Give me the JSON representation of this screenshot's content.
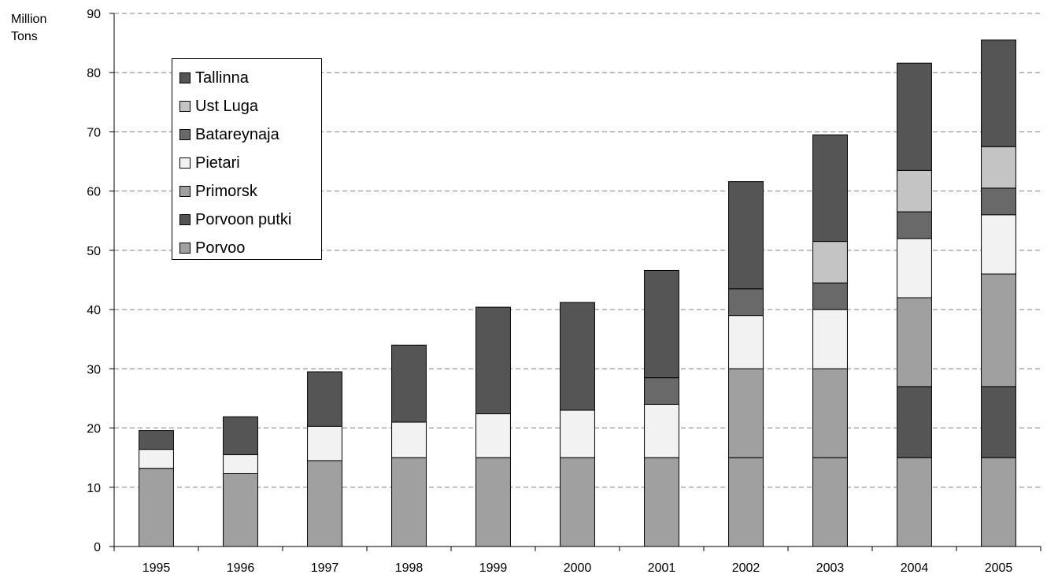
{
  "chart_data": {
    "type": "bar",
    "stacked": true,
    "title": "",
    "ylabel_lines": [
      "Million",
      "Tons"
    ],
    "ylim": [
      0,
      90
    ],
    "ytick_step": 10,
    "grid": "horizontal dashed",
    "legend_position": "top-left",
    "categories": [
      "1995",
      "1996",
      "1997",
      "1998",
      "1999",
      "2000",
      "2001",
      "2002",
      "2003",
      "2004",
      "2005"
    ],
    "series": [
      {
        "name": "Porvoo",
        "color": "#a0a0a0",
        "values": [
          13.2,
          12.3,
          14.5,
          15,
          15,
          15,
          15,
          15,
          15,
          15,
          15
        ]
      },
      {
        "name": "Porvoon putki",
        "color": "#555555",
        "values": [
          0,
          0,
          0,
          0,
          0,
          0,
          0,
          0,
          0,
          12,
          12
        ]
      },
      {
        "name": "Primorsk",
        "color": "#a0a0a0",
        "values": [
          0,
          0,
          0,
          0,
          0,
          0,
          0,
          15,
          15,
          15,
          19
        ]
      },
      {
        "name": "Pietari",
        "color": "#f2f2f2",
        "values": [
          3.2,
          3.2,
          5.8,
          6,
          7.4,
          8,
          9,
          9,
          10,
          10,
          10
        ]
      },
      {
        "name": "Batareynaja",
        "color": "#696969",
        "values": [
          0,
          0,
          0,
          0,
          0,
          0,
          4.5,
          4.5,
          4.5,
          4.5,
          4.5
        ]
      },
      {
        "name": "Ust Luga",
        "color": "#c4c4c4",
        "values": [
          0,
          0,
          0,
          0,
          0,
          0,
          0,
          0,
          7,
          7,
          7
        ]
      },
      {
        "name": "Tallinna",
        "color": "#555555",
        "values": [
          3.2,
          6.4,
          9.2,
          13,
          18,
          18.2,
          18.1,
          18.1,
          18,
          18.1,
          18
        ]
      }
    ]
  }
}
